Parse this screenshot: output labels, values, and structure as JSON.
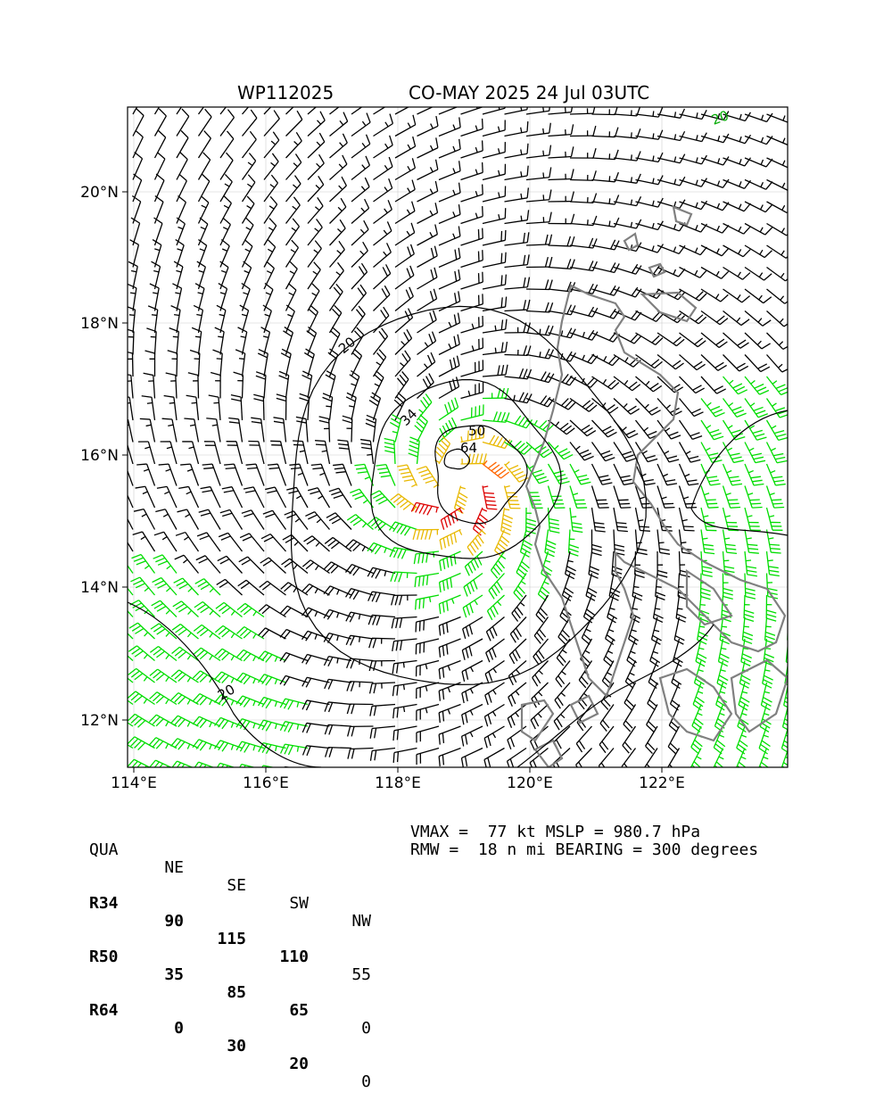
{
  "title_left": "WP112025",
  "title_right": "CO-MAY 2025 24 Jul 03UTC",
  "map": {
    "lon_ticks": [
      "114°E",
      "116°E",
      "118°E",
      "120°E",
      "122°E"
    ],
    "lat_ticks": [
      "20°N",
      "18°N",
      "16°N",
      "14°N",
      "12°N"
    ],
    "contour_labels": [
      "20",
      "34",
      "50",
      "64"
    ],
    "colors": {
      "below_34kt": "#000000",
      "34_50kt": "#00dd00",
      "50_64kt": "#e8b800",
      "64_plus_kt": "#ff6600",
      "peak": "#dd0000",
      "coastline": "#808080",
      "grid": "#cccccc"
    }
  },
  "table": {
    "header": [
      "QUA",
      "NE",
      "SE",
      "SW",
      "NW"
    ],
    "rows": [
      [
        "R34",
        "90",
        "115",
        "110",
        "55"
      ],
      [
        "R50",
        "35",
        "85",
        "65",
        "0"
      ],
      [
        "R64",
        "0",
        "30",
        "20",
        "0"
      ]
    ]
  },
  "summary": {
    "line1": "VMAX =  77 kt MSLP = 980.7 hPa",
    "line2": "RMW =  18 n mi BEARING = 300 degrees"
  }
}
